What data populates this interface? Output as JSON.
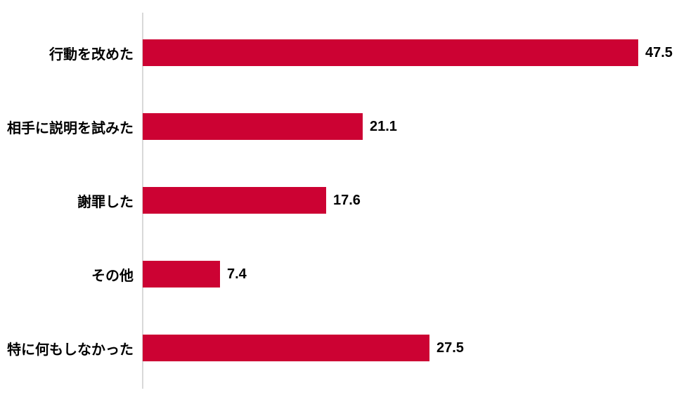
{
  "chart_data": {
    "type": "bar",
    "orientation": "horizontal",
    "title": "",
    "xlabel": "",
    "ylabel": "",
    "categories": [
      "行動を改めた",
      "相手に説明を試みた",
      "謝罪した",
      "その他",
      "特に何もしなかった"
    ],
    "values": [
      47.5,
      21.1,
      17.6,
      7.4,
      27.5
    ],
    "value_labels": [
      "47.5",
      "21.1",
      "17.6",
      "7.4",
      "27.5"
    ],
    "xlim": [
      0,
      50
    ],
    "grid": false,
    "legend": false,
    "bar_color": "#cc0233",
    "axis_line_color": "#d9d9d9",
    "text_color": "#000000"
  }
}
